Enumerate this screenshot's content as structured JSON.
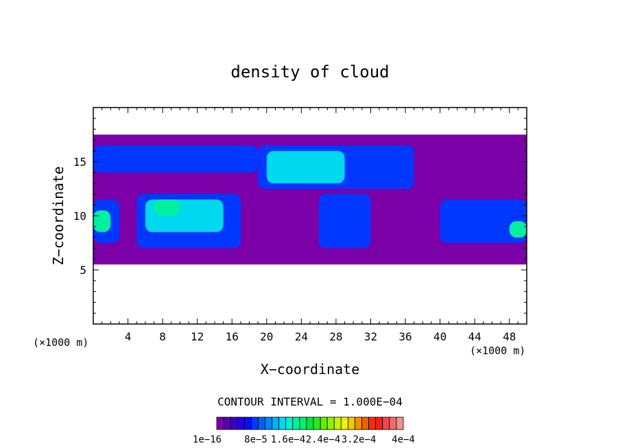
{
  "chart_data": {
    "type": "heatmap",
    "title": "density of cloud",
    "xlabel": "X−coordinate",
    "ylabel": "Z−coordinate",
    "x_unit": "(×1000 m)",
    "y_unit": "(×1000 m)",
    "xlim": [
      0,
      50
    ],
    "ylim": [
      0,
      20
    ],
    "x_ticks": [
      4,
      8,
      12,
      16,
      20,
      24,
      28,
      32,
      36,
      40,
      44,
      48
    ],
    "x_tick_labels": [
      "4",
      "8",
      "12",
      "16",
      "20",
      "24",
      "28",
      "32",
      "36",
      "40",
      "44",
      "48"
    ],
    "y_ticks": [
      5,
      10,
      15
    ],
    "y_tick_labels": [
      "5",
      "10",
      "15"
    ],
    "contour_interval": "CONTOUR INTERVAL = 1.000E−04",
    "colorbar": {
      "labels": [
        "1e−16",
        "8e−5",
        "1.6e−4",
        "2.4e−4",
        "3.2e−4",
        "4e−4"
      ],
      "colors": [
        "#7B00A8",
        "#5A00B4",
        "#3C00C8",
        "#2400E0",
        "#0010F8",
        "#0038FF",
        "#0060FF",
        "#0088FF",
        "#00B0FF",
        "#00D8F0",
        "#00F0D0",
        "#00F0A0",
        "#00F070",
        "#00E840",
        "#30E820",
        "#60F000",
        "#90F000",
        "#C8F000",
        "#F0F000",
        "#F0C800",
        "#F09000",
        "#F06000",
        "#F03000",
        "#F02020",
        "#F04848",
        "#F06C6C",
        "#F09090"
      ]
    },
    "cloud_regions": [
      {
        "x0": 0,
        "x1": 50,
        "z0": 5.5,
        "z1": 17.5,
        "level": 0
      },
      {
        "x0": 0,
        "x1": 19,
        "z0": 14.0,
        "z1": 16.5,
        "level": 5
      },
      {
        "x0": 0,
        "x1": 3,
        "z0": 7.5,
        "z1": 11.5,
        "level": 5
      },
      {
        "x0": 5,
        "x1": 17,
        "z0": 7.0,
        "z1": 12.0,
        "level": 5
      },
      {
        "x0": 19,
        "x1": 37,
        "z0": 12.5,
        "z1": 16.5,
        "level": 5
      },
      {
        "x0": 26,
        "x1": 32,
        "z0": 7.0,
        "z1": 12.0,
        "level": 5
      },
      {
        "x0": 40,
        "x1": 50,
        "z0": 7.5,
        "z1": 11.5,
        "level": 5
      },
      {
        "x0": 6,
        "x1": 15,
        "z0": 8.5,
        "z1": 11.5,
        "level": 9
      },
      {
        "x0": 20,
        "x1": 29,
        "z0": 13.0,
        "z1": 16.0,
        "level": 9
      },
      {
        "x0": 0,
        "x1": 2,
        "z0": 8.5,
        "z1": 10.5,
        "level": 11
      },
      {
        "x0": 48,
        "x1": 50,
        "z0": 8.0,
        "z1": 9.5,
        "level": 11
      },
      {
        "x0": 7,
        "x1": 10,
        "z0": 10.0,
        "z1": 11.5,
        "level": 11
      }
    ]
  }
}
